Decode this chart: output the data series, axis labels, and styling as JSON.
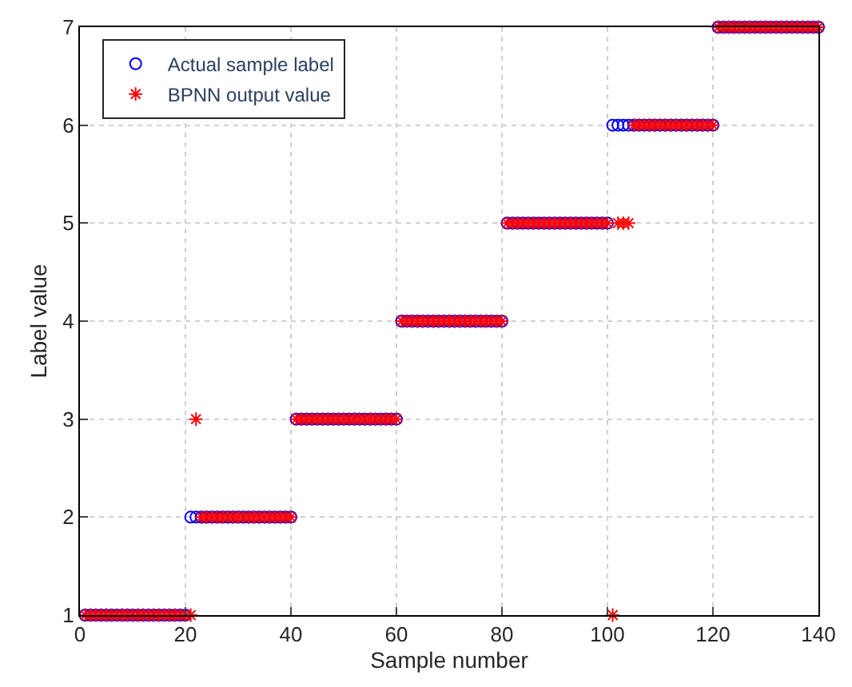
{
  "chart_data": {
    "type": "scatter",
    "xlabel": "Sample number",
    "ylabel": "Label value",
    "x": [
      1,
      2,
      3,
      4,
      5,
      6,
      7,
      8,
      9,
      10,
      11,
      12,
      13,
      14,
      15,
      16,
      17,
      18,
      19,
      20,
      21,
      22,
      23,
      24,
      25,
      26,
      27,
      28,
      29,
      30,
      31,
      32,
      33,
      34,
      35,
      36,
      37,
      38,
      39,
      40,
      41,
      42,
      43,
      44,
      45,
      46,
      47,
      48,
      49,
      50,
      51,
      52,
      53,
      54,
      55,
      56,
      57,
      58,
      59,
      60,
      61,
      62,
      63,
      64,
      65,
      66,
      67,
      68,
      69,
      70,
      71,
      72,
      73,
      74,
      75,
      76,
      77,
      78,
      79,
      80,
      81,
      82,
      83,
      84,
      85,
      86,
      87,
      88,
      89,
      90,
      91,
      92,
      93,
      94,
      95,
      96,
      97,
      98,
      99,
      100,
      101,
      102,
      103,
      104,
      105,
      106,
      107,
      108,
      109,
      110,
      111,
      112,
      113,
      114,
      115,
      116,
      117,
      118,
      119,
      120,
      121,
      122,
      123,
      124,
      125,
      126,
      127,
      128,
      129,
      130,
      131,
      132,
      133,
      134,
      135,
      136,
      137,
      138,
      139,
      140
    ],
    "series": [
      {
        "name": "Actual sample label",
        "color": "#0000ff",
        "marker": "circle",
        "values": [
          1,
          1,
          1,
          1,
          1,
          1,
          1,
          1,
          1,
          1,
          1,
          1,
          1,
          1,
          1,
          1,
          1,
          1,
          1,
          1,
          2,
          2,
          2,
          2,
          2,
          2,
          2,
          2,
          2,
          2,
          2,
          2,
          2,
          2,
          2,
          2,
          2,
          2,
          2,
          2,
          3,
          3,
          3,
          3,
          3,
          3,
          3,
          3,
          3,
          3,
          3,
          3,
          3,
          3,
          3,
          3,
          3,
          3,
          3,
          3,
          4,
          4,
          4,
          4,
          4,
          4,
          4,
          4,
          4,
          4,
          4,
          4,
          4,
          4,
          4,
          4,
          4,
          4,
          4,
          4,
          5,
          5,
          5,
          5,
          5,
          5,
          5,
          5,
          5,
          5,
          5,
          5,
          5,
          5,
          5,
          5,
          5,
          5,
          5,
          5,
          6,
          6,
          6,
          6,
          6,
          6,
          6,
          6,
          6,
          6,
          6,
          6,
          6,
          6,
          6,
          6,
          6,
          6,
          6,
          6,
          7,
          7,
          7,
          7,
          7,
          7,
          7,
          7,
          7,
          7,
          7,
          7,
          7,
          7,
          7,
          7,
          7,
          7,
          7,
          7
        ]
      },
      {
        "name": "BPNN output value",
        "color": "#ff0000",
        "marker": "cross",
        "values": [
          1,
          1,
          1,
          1,
          1,
          1,
          1,
          1,
          1,
          1,
          1,
          1,
          1,
          1,
          1,
          1,
          1,
          1,
          1,
          1,
          1,
          3,
          2,
          2,
          2,
          2,
          2,
          2,
          2,
          2,
          2,
          2,
          2,
          2,
          2,
          2,
          2,
          2,
          2,
          2,
          3,
          3,
          3,
          3,
          3,
          3,
          3,
          3,
          3,
          3,
          3,
          3,
          3,
          3,
          3,
          3,
          3,
          3,
          3,
          3,
          4,
          4,
          4,
          4,
          4,
          4,
          4,
          4,
          4,
          4,
          4,
          4,
          4,
          4,
          4,
          4,
          4,
          4,
          4,
          4,
          5,
          5,
          5,
          5,
          5,
          5,
          5,
          5,
          5,
          5,
          5,
          5,
          5,
          5,
          5,
          5,
          5,
          5,
          5,
          5,
          1,
          5,
          5,
          5,
          6,
          6,
          6,
          6,
          6,
          6,
          6,
          6,
          6,
          6,
          6,
          6,
          6,
          6,
          6,
          6,
          7,
          7,
          7,
          7,
          7,
          7,
          7,
          7,
          7,
          7,
          7,
          7,
          7,
          7,
          7,
          7,
          7,
          7,
          7,
          7
        ]
      }
    ],
    "xlim": [
      0,
      140
    ],
    "xticks": [
      0,
      20,
      40,
      60,
      80,
      100,
      120,
      140
    ],
    "ylim": [
      1,
      7
    ],
    "yticks": [
      1,
      2,
      3,
      4,
      5,
      6,
      7
    ],
    "grid": true,
    "legend": "top left"
  }
}
